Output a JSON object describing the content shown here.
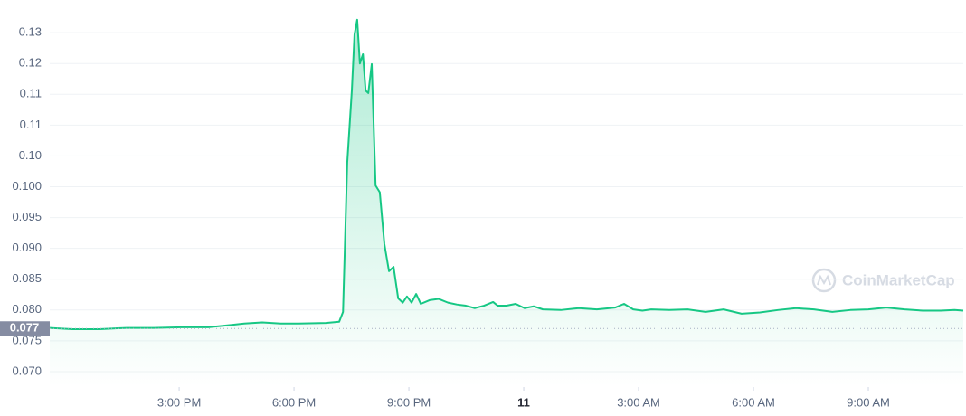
{
  "chart_data": {
    "type": "line",
    "area": true,
    "grid": true,
    "watermark": "CoinMarketCap",
    "x": [
      11.62,
      12.21,
      12.92,
      13.63,
      14.34,
      15.05,
      15.76,
      16.23,
      16.7,
      17.17,
      17.65,
      18.12,
      18.83,
      19.18,
      19.28,
      19.39,
      19.51,
      19.58,
      19.65,
      19.72,
      19.8,
      19.87,
      19.94,
      20.03,
      20.13,
      20.24,
      20.36,
      20.48,
      20.6,
      20.72,
      20.84,
      20.95,
      21.07,
      21.19,
      21.31,
      21.54,
      21.78,
      22.02,
      22.25,
      22.49,
      22.72,
      22.96,
      23.2,
      23.32,
      23.55,
      23.79,
      24.02,
      24.26,
      24.5,
      24.97,
      25.44,
      25.91,
      26.39,
      26.62,
      26.86,
      27.1,
      27.33,
      27.8,
      28.28,
      28.75,
      29.22,
      29.69,
      30.17,
      30.64,
      31.11,
      31.58,
      32.06,
      32.53,
      33.0,
      33.47,
      33.95,
      34.42,
      34.89,
      35.25,
      35.48
    ],
    "series": [
      {
        "color": "#16c784",
        "values": [
          0.0771,
          0.0769,
          0.0769,
          0.0771,
          0.0771,
          0.0772,
          0.0772,
          0.0775,
          0.0778,
          0.078,
          0.0778,
          0.0778,
          0.0779,
          0.0781,
          0.0797,
          0.1039,
          0.1156,
          0.1247,
          0.1271,
          0.12,
          0.1215,
          0.1156,
          0.1152,
          0.1199,
          0.1002,
          0.0991,
          0.0907,
          0.0863,
          0.087,
          0.0819,
          0.0812,
          0.0822,
          0.0812,
          0.0826,
          0.081,
          0.0816,
          0.0818,
          0.0812,
          0.0809,
          0.0807,
          0.0803,
          0.0807,
          0.0813,
          0.0807,
          0.0807,
          0.081,
          0.0803,
          0.0806,
          0.0801,
          0.08,
          0.0803,
          0.0801,
          0.0804,
          0.081,
          0.0801,
          0.0799,
          0.0801,
          0.08,
          0.0801,
          0.0797,
          0.0801,
          0.0794,
          0.0796,
          0.08,
          0.0803,
          0.0801,
          0.0797,
          0.08,
          0.0801,
          0.0804,
          0.0801,
          0.0799,
          0.0799,
          0.08,
          0.0799
        ]
      }
    ],
    "xlim": [
      11.62,
      35.48
    ],
    "xticks": [
      {
        "value": 15,
        "label": "3:00 PM"
      },
      {
        "value": 18,
        "label": "6:00 PM"
      },
      {
        "value": 21,
        "label": "9:00 PM"
      },
      {
        "value": 24,
        "label": "11"
      },
      {
        "value": 27,
        "label": "3:00 AM"
      },
      {
        "value": 30,
        "label": "6:00 AM"
      },
      {
        "value": 33,
        "label": "9:00 AM"
      }
    ],
    "ylim": [
      0.0675,
      0.1303
    ],
    "yticks": [
      {
        "value": 0.07,
        "label": "0.070"
      },
      0.075,
      {
        "value": 0.08,
        "label": "0.080"
      },
      0.085,
      {
        "value": 0.09,
        "label": "0.090"
      },
      0.095,
      {
        "value": 0.1,
        "label": "0.100"
      },
      {
        "value": 0.105,
        "label": "0.10"
      },
      0.11,
      {
        "value": 0.115,
        "label": "0.11"
      },
      0.12,
      {
        "value": 0.125,
        "label": "0.13"
      }
    ],
    "price_marker": {
      "value": 0.077,
      "label": "0.077"
    }
  }
}
